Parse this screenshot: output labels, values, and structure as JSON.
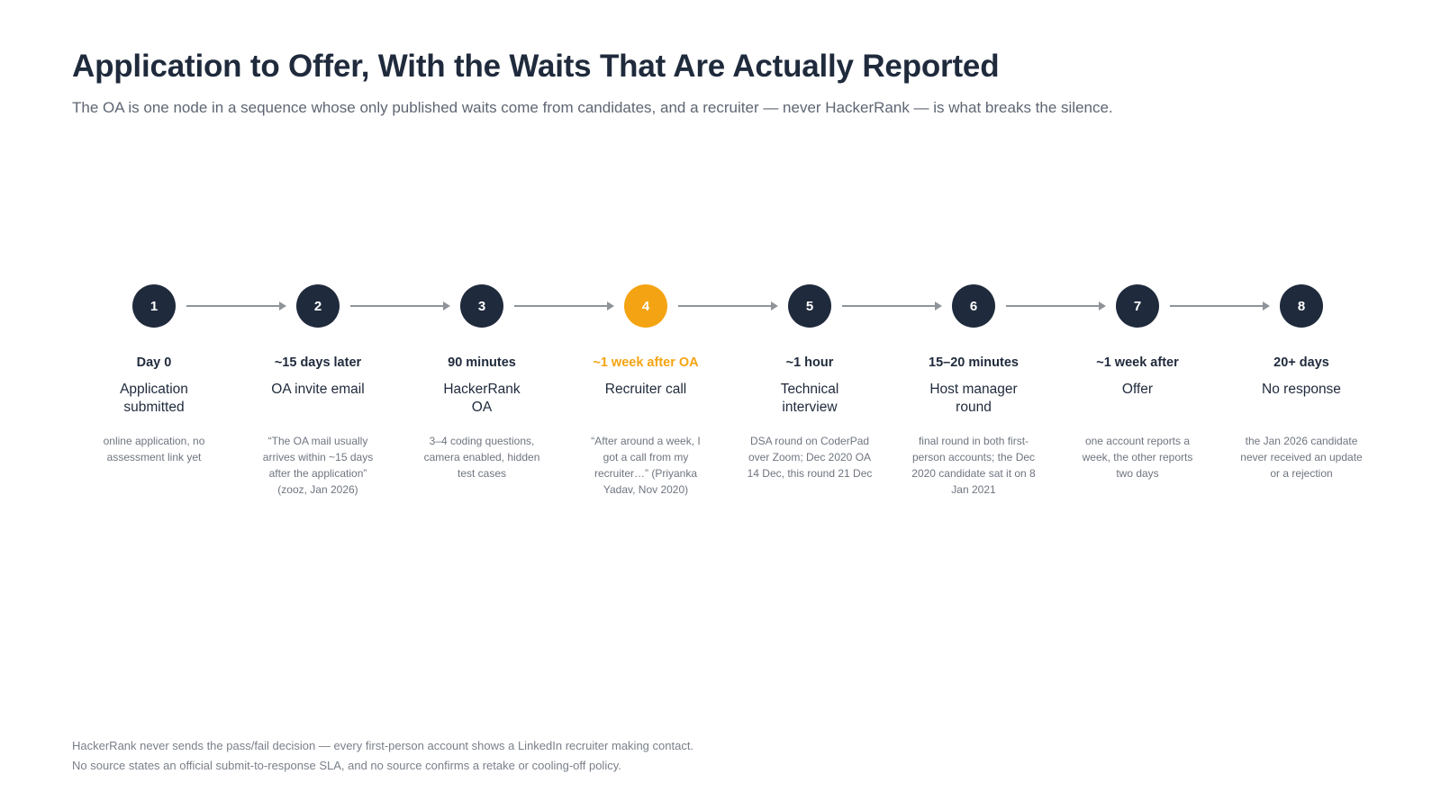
{
  "header": {
    "title": "Application to Offer, With the Waits That Are Actually Reported",
    "subtitle": "The OA is one node in a sequence whose only published waits come from candidates, and a recruiter — never HackerRank — is what breaks the silence."
  },
  "colors": {
    "node": "#1f2a3c",
    "accent": "#f4a312",
    "arrow": "#8f949b"
  },
  "steps": [
    {
      "number": "1",
      "duration": "Day 0",
      "label": "Application submitted",
      "note": "online application, no assessment link yet",
      "highlight": false
    },
    {
      "number": "2",
      "duration": "~15 days later",
      "label": "OA invite email",
      "note": "“The OA mail usually arrives within ~15 days after the application” (zooz, Jan 2026)",
      "highlight": false
    },
    {
      "number": "3",
      "duration": "90 minutes",
      "label": "HackerRank OA",
      "note": "3–4 coding questions, camera enabled, hidden test cases",
      "highlight": false
    },
    {
      "number": "4",
      "duration": "~1 week after OA",
      "label": "Recruiter call",
      "note": "“After around a week, I got a call from my recruiter…” (Priyanka Yadav, Nov 2020)",
      "highlight": true
    },
    {
      "number": "5",
      "duration": "~1 hour",
      "label": "Technical interview",
      "note": "DSA round on CoderPad over Zoom; Dec 2020 OA 14 Dec, this round 21 Dec",
      "highlight": false
    },
    {
      "number": "6",
      "duration": "15–20 minutes",
      "label": "Host manager round",
      "note": "final round in both first-person accounts; the Dec 2020 candidate sat it on 8 Jan 2021",
      "highlight": false
    },
    {
      "number": "7",
      "duration": "~1 week after",
      "label": "Offer",
      "note": "one account reports a week, the other reports two days",
      "highlight": false
    },
    {
      "number": "8",
      "duration": "20+ days",
      "label": "No response",
      "note": "the Jan 2026 candidate never received an update or a rejection",
      "highlight": false
    }
  ],
  "footnotes": [
    "HackerRank never sends the pass/fail decision — every first-person account shows a LinkedIn recruiter making contact.",
    "No source states an official submit-to-response SLA, and no source confirms a retake or cooling-off policy."
  ]
}
